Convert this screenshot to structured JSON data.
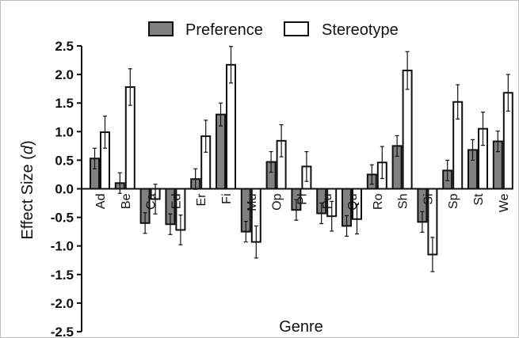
{
  "chart_data": {
    "type": "bar",
    "xlabel": "Genre",
    "ylabel_prefix": "Effect Size (",
    "ylabel_var": "d",
    "ylabel_suffix": ")",
    "ylim": [
      -2.5,
      2.5
    ],
    "yticks": [
      "2.5",
      "2.0",
      "1.5",
      "1.0",
      "0.5",
      "0.0",
      "-0.5",
      "-1.0",
      "-1.5",
      "-2.0",
      "-2.5"
    ],
    "legend_position": "top",
    "categories": [
      "Ad",
      "Be",
      "Ca",
      "Ed",
      "Er",
      "Fi",
      "Mu",
      "Op",
      "Pl",
      "Pu",
      "Qu",
      "Ro",
      "Sh",
      "Si",
      "Sp",
      "St",
      "We"
    ],
    "series": [
      {
        "name": "Preference",
        "color": "#808080",
        "values": [
          0.53,
          0.1,
          -0.6,
          -0.62,
          0.17,
          1.3,
          -0.75,
          0.47,
          -0.37,
          -0.43,
          -0.65,
          0.25,
          0.75,
          -0.58,
          0.32,
          0.68,
          0.83
        ],
        "error": [
          0.18,
          0.18,
          0.18,
          0.18,
          0.18,
          0.2,
          0.18,
          0.18,
          0.18,
          0.18,
          0.18,
          0.17,
          0.18,
          0.18,
          0.18,
          0.18,
          0.18
        ]
      },
      {
        "name": "Stereotype",
        "color": "#ffffff",
        "values": [
          0.99,
          1.78,
          -0.18,
          -0.72,
          0.92,
          2.17,
          -0.93,
          0.84,
          0.39,
          -0.48,
          -0.53,
          0.46,
          2.07,
          -1.15,
          1.52,
          1.05,
          1.68
        ],
        "error": [
          0.28,
          0.32,
          0.26,
          0.26,
          0.28,
          0.32,
          0.28,
          0.28,
          0.26,
          0.26,
          0.26,
          0.28,
          0.33,
          0.3,
          0.3,
          0.29,
          0.32
        ]
      }
    ]
  }
}
